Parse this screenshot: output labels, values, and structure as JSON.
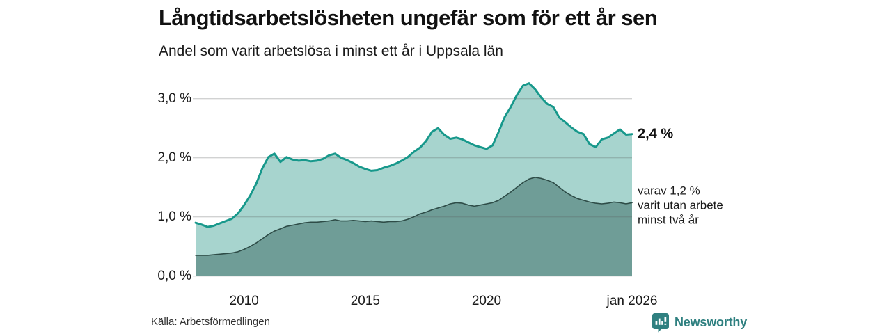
{
  "header": {
    "title": "Långtidsarbetslösheten ungefär som för ett år sen",
    "subtitle": "Andel som varit arbetslösa i minst ett år i Uppsala län"
  },
  "chart_data": {
    "type": "area",
    "title": "Långtidsarbetslösheten ungefär som för ett år sen",
    "subtitle": "Andel som varit arbetslösa i minst ett år i Uppsala län",
    "x_start": 2008.0,
    "x_step": 0.25,
    "ylim": [
      0,
      3.3
    ],
    "grid": true,
    "yticks": [
      {
        "value": 3.0,
        "label": "3,0 %"
      },
      {
        "value": 2.0,
        "label": "2,0 %"
      },
      {
        "value": 1.0,
        "label": "1,0 %"
      },
      {
        "value": 0.0,
        "label": "0,0 %"
      }
    ],
    "xticks": [
      {
        "t": 2010.0,
        "label": "2010"
      },
      {
        "t": 2015.0,
        "label": "2015"
      },
      {
        "t": 2020.0,
        "label": "2020"
      },
      {
        "t": 2026.0,
        "label": "jan 2026"
      }
    ],
    "series": [
      {
        "name": "Andel arbetslösa minst ett år",
        "line_color": "#17988b",
        "fill_color": "#a7d4ce",
        "line_width": 3,
        "values": [
          0.9,
          0.87,
          0.83,
          0.85,
          0.89,
          0.93,
          0.97,
          1.06,
          1.2,
          1.36,
          1.56,
          1.82,
          2.01,
          2.07,
          1.93,
          2.01,
          1.97,
          1.95,
          1.96,
          1.94,
          1.95,
          1.98,
          2.04,
          2.07,
          2.0,
          1.96,
          1.91,
          1.85,
          1.81,
          1.78,
          1.79,
          1.83,
          1.86,
          1.9,
          1.95,
          2.01,
          2.1,
          2.17,
          2.28,
          2.44,
          2.5,
          2.39,
          2.32,
          2.34,
          2.31,
          2.26,
          2.21,
          2.18,
          2.15,
          2.21,
          2.44,
          2.69,
          2.86,
          3.06,
          3.22,
          3.26,
          3.16,
          3.02,
          2.91,
          2.86,
          2.68,
          2.6,
          2.51,
          2.44,
          2.4,
          2.23,
          2.18,
          2.31,
          2.34,
          2.41,
          2.48,
          2.39,
          2.4
        ]
      },
      {
        "name": "varav utan arbete minst två år",
        "line_color": "#2e4c47",
        "fill_color": "#6f9d97",
        "line_width": 1.6,
        "values": [
          0.35,
          0.35,
          0.35,
          0.36,
          0.37,
          0.38,
          0.39,
          0.41,
          0.45,
          0.5,
          0.56,
          0.63,
          0.7,
          0.76,
          0.8,
          0.84,
          0.86,
          0.88,
          0.9,
          0.91,
          0.91,
          0.92,
          0.93,
          0.95,
          0.93,
          0.93,
          0.94,
          0.93,
          0.92,
          0.93,
          0.92,
          0.91,
          0.92,
          0.92,
          0.93,
          0.96,
          1.0,
          1.05,
          1.08,
          1.12,
          1.15,
          1.18,
          1.22,
          1.24,
          1.23,
          1.2,
          1.18,
          1.2,
          1.22,
          1.24,
          1.28,
          1.35,
          1.42,
          1.5,
          1.58,
          1.64,
          1.67,
          1.65,
          1.62,
          1.58,
          1.5,
          1.42,
          1.36,
          1.31,
          1.28,
          1.25,
          1.23,
          1.22,
          1.23,
          1.25,
          1.24,
          1.22,
          1.24
        ]
      }
    ],
    "end_labels": [
      {
        "text": "2,4 %",
        "value": 2.4
      },
      {
        "value": 1.2,
        "lines": [
          "varav 1,2 %",
          "varit utan arbete",
          "minst två år"
        ]
      }
    ]
  },
  "footer": {
    "source": "Källa: Arbetsförmedlingen",
    "brand": "Newsworthy"
  },
  "colors": {
    "accent_teal": "#17988b",
    "light_fill": "#a7d4ce",
    "dark_line": "#2e4c47",
    "dark_fill": "#6f9d97",
    "brand_teal": "#2f8080",
    "gridline": "#d9d9d9"
  }
}
